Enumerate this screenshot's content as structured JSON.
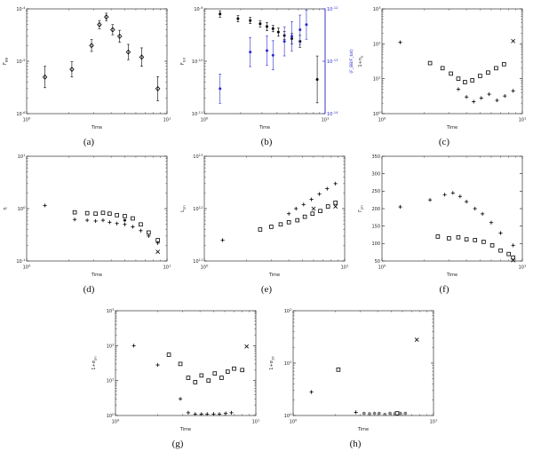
{
  "figure": {
    "background": "#ffffff"
  },
  "chart_data": [
    {
      "id": "a",
      "caption": "(a)",
      "type": "scatter",
      "xlabel": "Time",
      "ylabel": "F",
      "ylabel_sub": "BB",
      "xscale": "log",
      "yscale": "log",
      "xlim": [
        1,
        10
      ],
      "ylim": [
        1e-06,
        0.0001
      ],
      "series": [
        {
          "name": "bb-flux-diamonds",
          "marker": "diamond",
          "color": "#000000",
          "x": [
            1.35,
            2.1,
            2.9,
            3.3,
            3.7,
            4.1,
            4.6,
            5.3,
            6.6,
            8.6
          ],
          "y": [
            5e-06,
            7e-06,
            2e-05,
            5e-05,
            7e-05,
            4e-05,
            3e-05,
            1.5e-05,
            1.2e-05,
            3e-06
          ],
          "err_factors": [
            1.6,
            1.4,
            1.3,
            1.2,
            1.18,
            1.25,
            1.3,
            1.4,
            1.5,
            1.7
          ]
        }
      ]
    },
    {
      "id": "b",
      "caption": "(b)",
      "type": "scatter",
      "xlabel": "Time",
      "ylabel": "F",
      "ylabel_sub": "tot",
      "xscale": "log",
      "yscale": "log",
      "xlim": [
        1,
        10
      ],
      "ylim": [
        1e-11,
        1e-09
      ],
      "y2": {
        "lim": [
          1e-14,
          1e-12
        ],
        "label": "(F_BB/F_tot)",
        "color": "#2a2ad0"
      },
      "series": [
        {
          "name": "total-flux-black-dots",
          "marker": "dot",
          "color": "#000000",
          "x": [
            1.35,
            1.9,
            2.4,
            2.9,
            3.3,
            3.7,
            4.1,
            4.6,
            5.3,
            6.2,
            8.6
          ],
          "y": [
            8e-10,
            6.5e-10,
            6e-10,
            5.2e-10,
            4.6e-10,
            4.2e-10,
            3.6e-10,
            3.1e-10,
            2.7e-10,
            2.4e-10,
            4.5e-11
          ],
          "err_factors": [
            1.15,
            1.15,
            1.15,
            1.15,
            1.2,
            1.15,
            1.2,
            1.2,
            1.25,
            1.3,
            2.8
          ]
        },
        {
          "name": "flux-ratio-blue-dots",
          "marker": "dot",
          "color": "#2a2ad0",
          "yaxis": "y2",
          "err_factor": 1.9,
          "x": [
            1.35,
            2.4,
            3.3,
            3.7,
            4.6,
            5.3,
            6.2,
            7.0
          ],
          "y": [
            3e-14,
            1.5e-13,
            1.6e-13,
            1.3e-13,
            2.4e-13,
            3e-13,
            4e-13,
            5e-13
          ]
        }
      ]
    },
    {
      "id": "c",
      "caption": "(c)",
      "type": "scatter",
      "xlabel": "Time",
      "ylabel": "1+n",
      "ylabel_sub": "e",
      "xscale": "log",
      "yscale": "log",
      "xlim": [
        1,
        10
      ],
      "ylim": [
        1,
        1000
      ],
      "series": [
        {
          "name": "plus-points",
          "marker": "plus",
          "color": "#000000",
          "x": [
            1.35,
            3.5,
            4.0,
            4.5,
            5.1,
            5.8,
            6.6,
            7.5,
            8.6
          ],
          "y": [
            110,
            5,
            3,
            2.2,
            2.8,
            3.6,
            2.4,
            3.2,
            4.5
          ]
        },
        {
          "name": "square-points",
          "marker": "square",
          "color": "#000000",
          "x": [
            2.2,
            2.7,
            3.1,
            3.5,
            3.9,
            4.4,
            5.0,
            5.7,
            6.5,
            7.4
          ],
          "y": [
            28,
            20,
            14,
            10,
            8,
            9,
            12,
            15,
            20,
            26
          ]
        },
        {
          "name": "cross-points",
          "marker": "x",
          "color": "#000000",
          "x": [
            8.6
          ],
          "y": [
            120
          ]
        }
      ]
    },
    {
      "id": "d",
      "caption": "(d)",
      "type": "scatter",
      "xlabel": "Time",
      "ylabel": "η",
      "ylabel_sub": "",
      "xscale": "log",
      "yscale": "log",
      "xlim": [
        1,
        10
      ],
      "ylim": [
        0.1,
        10
      ],
      "series": [
        {
          "name": "plus-points",
          "marker": "plus",
          "color": "#000000",
          "x": [
            1.35,
            2.2,
            2.7,
            3.1,
            3.5,
            3.9,
            4.4,
            5.0,
            5.7,
            6.5,
            7.4,
            8.6
          ],
          "y": [
            1.15,
            0.62,
            0.6,
            0.58,
            0.6,
            0.55,
            0.52,
            0.5,
            0.45,
            0.38,
            0.3,
            0.22
          ]
        },
        {
          "name": "square-points",
          "marker": "square",
          "color": "#000000",
          "x": [
            2.2,
            2.7,
            3.1,
            3.5,
            3.9,
            4.4,
            5.0,
            5.7,
            6.5,
            7.4,
            8.6
          ],
          "y": [
            0.85,
            0.82,
            0.8,
            0.83,
            0.8,
            0.75,
            0.72,
            0.65,
            0.5,
            0.35,
            0.25
          ]
        },
        {
          "name": "filled-dot",
          "marker": "dot",
          "color": "#000000",
          "x": [
            5.0
          ],
          "y": [
            0.6
          ]
        },
        {
          "name": "cross-points",
          "marker": "x",
          "color": "#000000",
          "x": [
            8.6
          ],
          "y": [
            0.15
          ]
        }
      ]
    },
    {
      "id": "e",
      "caption": "(e)",
      "type": "scatter",
      "xlabel": "Time",
      "ylabel": "L",
      "ylabel_sub": "ph",
      "xscale": "log",
      "yscale": "log",
      "xlim": [
        1,
        10
      ],
      "ylim": [
        100000000000.0,
        10000000000000.0
      ],
      "series": [
        {
          "name": "plus-points",
          "marker": "plus",
          "color": "#000000",
          "x": [
            1.35,
            4.0,
            4.5,
            5.1,
            5.8,
            6.6,
            7.5,
            8.6
          ],
          "y": [
            250000000000.0,
            800000000000.0,
            1000000000000.0,
            1200000000000.0,
            1500000000000.0,
            1900000000000.0,
            2400000000000.0,
            3000000000000.0
          ]
        },
        {
          "name": "square-points",
          "marker": "square",
          "color": "#000000",
          "x": [
            2.5,
            3.0,
            3.5,
            4.0,
            4.6,
            5.2,
            5.9,
            6.7,
            7.6,
            8.6
          ],
          "y": [
            400000000000.0,
            450000000000.0,
            500000000000.0,
            550000000000.0,
            600000000000.0,
            700000000000.0,
            800000000000.0,
            900000000000.0,
            1100000000000.0,
            1300000000000.0
          ]
        },
        {
          "name": "cross-points",
          "marker": "x",
          "color": "#000000",
          "x": [
            6.0,
            8.6
          ],
          "y": [
            1000000000000.0,
            1100000000000.0
          ]
        }
      ]
    },
    {
      "id": "f",
      "caption": "(f)",
      "type": "scatter",
      "xlabel": "Time",
      "ylabel": "Γ",
      "ylabel_sub": "ph",
      "xscale": "log",
      "yscale": "linear",
      "xlim": [
        1,
        10
      ],
      "ylim": [
        50,
        350
      ],
      "yticks": [
        50,
        100,
        150,
        200,
        250,
        300,
        350
      ],
      "series": [
        {
          "name": "plus-points",
          "marker": "plus",
          "color": "#000000",
          "x": [
            1.35,
            2.2,
            2.8,
            3.2,
            3.6,
            4.0,
            4.6,
            5.2,
            6.0,
            7.0,
            8.6
          ],
          "y": [
            205,
            225,
            240,
            245,
            235,
            220,
            200,
            185,
            160,
            130,
            95
          ]
        },
        {
          "name": "square-points",
          "marker": "square",
          "color": "#000000",
          "x": [
            2.5,
            3.0,
            3.5,
            4.0,
            4.6,
            5.3,
            6.1,
            7.0,
            8.0,
            8.6
          ],
          "y": [
            120,
            115,
            118,
            112,
            110,
            105,
            95,
            80,
            70,
            60
          ]
        },
        {
          "name": "cross-points",
          "marker": "x",
          "color": "#000000",
          "x": [
            8.6
          ],
          "y": [
            52
          ]
        }
      ]
    },
    {
      "id": "g",
      "caption": "(g)",
      "type": "scatter",
      "xlabel": "Time",
      "ylabel": "1+σ",
      "ylabel_sub": "ph",
      "xscale": "log",
      "yscale": "log",
      "xlim": [
        1,
        10
      ],
      "ylim": [
        1,
        1000
      ],
      "series": [
        {
          "name": "plus-points",
          "marker": "plus",
          "color": "#000000",
          "x": [
            1.35,
            2.0,
            2.9,
            3.3,
            3.7,
            4.1,
            4.5,
            5.0,
            5.5,
            6.1,
            6.7
          ],
          "y": [
            100,
            28,
            3,
            1.2,
            1.1,
            1.1,
            1.1,
            1.1,
            1.1,
            1.15,
            1.2
          ]
        },
        {
          "name": "square-points",
          "marker": "square",
          "color": "#000000",
          "x": [
            2.4,
            2.9,
            3.3,
            3.7,
            4.1,
            4.6,
            5.1,
            5.7,
            6.3,
            7.0,
            8.0
          ],
          "y": [
            55,
            30,
            12,
            9,
            14,
            10,
            16,
            12,
            18,
            22,
            20
          ]
        },
        {
          "name": "cross-points",
          "marker": "x",
          "color": "#000000",
          "x": [
            8.6
          ],
          "y": [
            95
          ]
        }
      ]
    },
    {
      "id": "h",
      "caption": "(h)",
      "type": "scatter",
      "xlabel": "Time",
      "ylabel": "1+σ",
      "ylabel_sub": "15",
      "xscale": "log",
      "yscale": "log",
      "xlim": [
        1,
        10
      ],
      "ylim": [
        1,
        100
      ],
      "series": [
        {
          "name": "plus-points",
          "marker": "plus",
          "color": "#000000",
          "x": [
            1.35,
            2.8
          ],
          "y": [
            2.8,
            1.15
          ]
        },
        {
          "name": "square-points",
          "marker": "square",
          "color": "#000000",
          "x": [
            2.1,
            5.5
          ],
          "y": [
            7.5,
            1.1
          ]
        },
        {
          "name": "gray-dot-points",
          "marker": "gdot",
          "color": "#888888",
          "x": [
            3.2,
            3.5,
            3.8,
            4.1,
            4.5,
            4.9,
            5.3,
            5.8,
            6.3
          ],
          "y": [
            1.1,
            1.08,
            1.1,
            1.1,
            1.05,
            1.1,
            1.08,
            1.1,
            1.1
          ]
        },
        {
          "name": "cross-points",
          "marker": "x",
          "color": "#000000",
          "x": [
            7.6
          ],
          "y": [
            28
          ]
        }
      ]
    }
  ]
}
